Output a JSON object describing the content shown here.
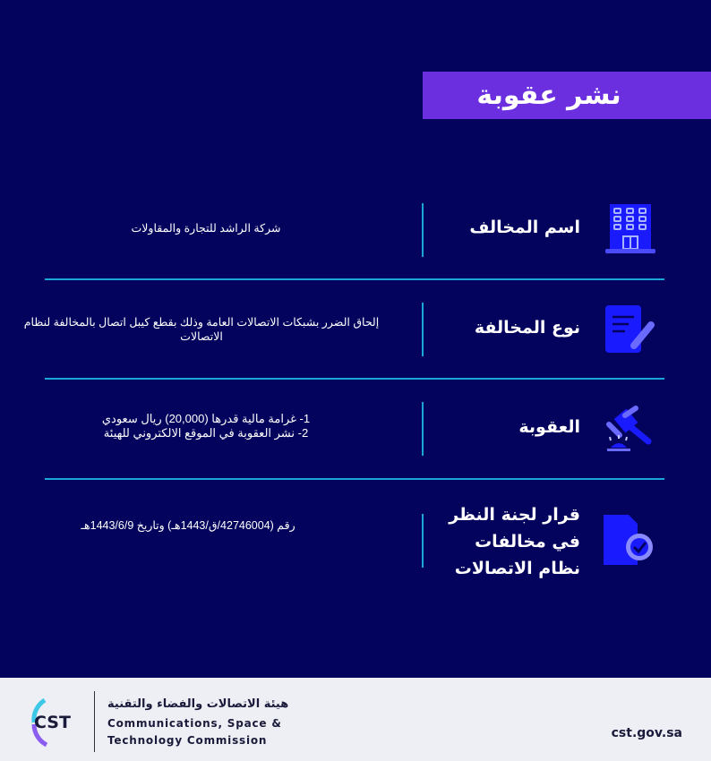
{
  "title": "نشر عقوبة",
  "rows": [
    {
      "label": "اسم المخالف",
      "icon": "building-icon",
      "value": "شركة الراشد للتجارة والمقاولات"
    },
    {
      "label": "نوع المخالفة",
      "icon": "document-edit-icon",
      "value": "إلحاق الضرر بشبكات الاتصالات العامة وذلك بقطع كيبل اتصال بالمخالفة لنظام الاتصالات"
    },
    {
      "label": "العقوبة",
      "icon": "gavel-icon",
      "value_lines": [
        "1- غرامة مالية قدرها (20,000) ريال سعودي",
        "2- نشر العقوبة في الموقع الالكتروني للهيئة"
      ]
    },
    {
      "label_lines": [
        "قرار لجنة النظر",
        "في مخالفات",
        "نظام الاتصالات"
      ],
      "icon": "certified-document-icon",
      "value": "رقم (42746004/ق/1443هـ) وتاريخ 1443/6/9هـ"
    }
  ],
  "footer": {
    "logo_text": "CST",
    "org_ar": "هيئة الاتصالات والفضاء والتقنية",
    "org_en_1": "Communications, Space &",
    "org_en_2": "Technology Commission",
    "url": "cst.gov.sa"
  },
  "colors": {
    "background": "#03035e",
    "title_bar": "#6b2fe0",
    "divider": "#1aa6d8",
    "icon": "#1a1aff"
  }
}
